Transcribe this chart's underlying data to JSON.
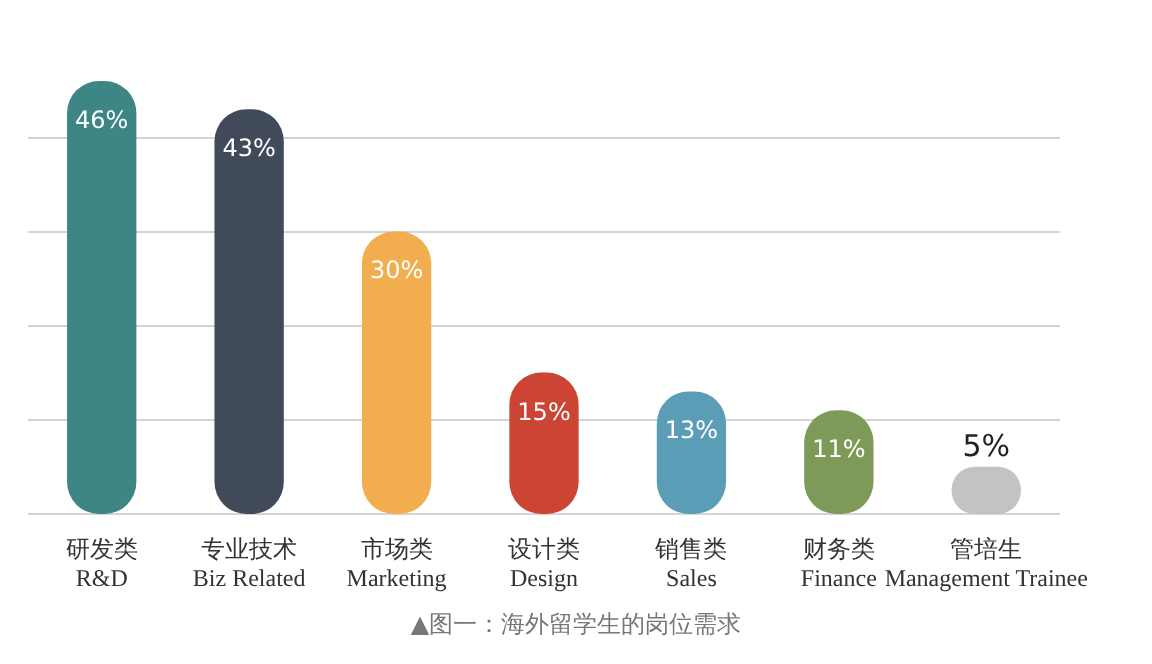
{
  "chart_data": {
    "type": "bar",
    "categories": [
      "研发类\nR&D",
      "专业技术\nBiz Related",
      "市场类\nMarketing",
      "设计类\nDesign",
      "销售类\nSales",
      "财务类\nFinance",
      "管培生\nManagement Trainee"
    ],
    "values": [
      46,
      43,
      30,
      15,
      13,
      11,
      5
    ],
    "colors": [
      "#3e8585",
      "#404a58",
      "#f2ad4f",
      "#cc4433",
      "#5b9db6",
      "#7d9a58",
      "#c4c2c2"
    ],
    "value_labels": [
      "46%",
      "43%",
      "30%",
      "15%",
      "13%",
      "11%",
      "5%"
    ],
    "yticks": [
      {
        "value": 0,
        "label": null
      },
      {
        "value": 10,
        "label": null
      },
      {
        "value": 20,
        "label": null
      },
      {
        "value": 30,
        "label": null
      },
      {
        "value": 40,
        "label": null
      }
    ],
    "grid": "y",
    "tick_labels": "x",
    "legend": false,
    "annotations": [
      "▲图一：海外留学生的岗位需求"
    ]
  }
}
